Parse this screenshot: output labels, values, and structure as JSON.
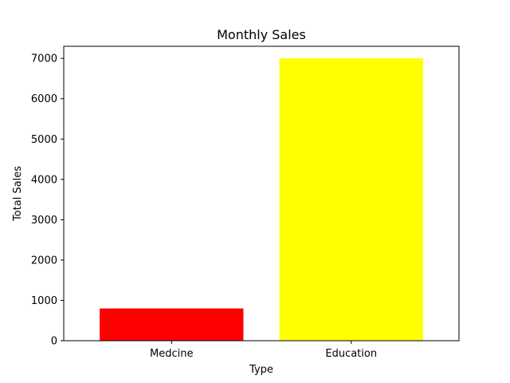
{
  "chart_data": {
    "type": "bar",
    "title": "Monthly Sales",
    "xlabel": "Type",
    "ylabel": "Total Sales",
    "categories": [
      "Medcine",
      "Education"
    ],
    "values": [
      800,
      7000
    ],
    "colors": [
      "#ff0000",
      "#ffff00"
    ],
    "ylim": [
      0,
      7300
    ],
    "yticks": [
      0,
      1000,
      2000,
      3000,
      4000,
      5000,
      6000,
      7000
    ],
    "ytick_labels": [
      "0",
      "1000",
      "2000",
      "3000",
      "4000",
      "5000",
      "6000",
      "7000"
    ],
    "grid": false,
    "legend": "none"
  }
}
